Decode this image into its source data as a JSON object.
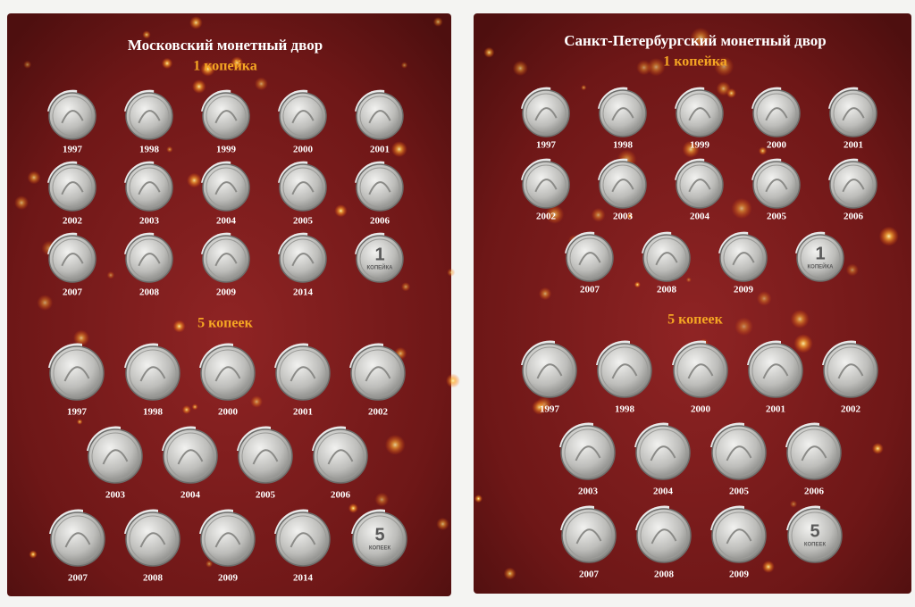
{
  "pages": [
    {
      "title": "Московский монетный двор",
      "sections": [
        {
          "label": "1 копейка",
          "coin_face": {
            "numeral": "1",
            "word": "КОПЕЙКА"
          },
          "rows": [
            [
              "1997",
              "1998",
              "1999",
              "2000",
              "2001"
            ],
            [
              "2002",
              "2003",
              "2004",
              "2005",
              "2006"
            ],
            [
              "2007",
              "2008",
              "2009",
              "2014"
            ]
          ]
        },
        {
          "label": "5 копеек",
          "coin_face": {
            "numeral": "5",
            "word": "КОПЕЕК"
          },
          "rows": [
            [
              "1997",
              "1998",
              "2000",
              "2001",
              "2002"
            ],
            [
              "2003",
              "2004",
              "2005",
              "2006"
            ],
            [
              "2007",
              "2008",
              "2009",
              "2014"
            ]
          ]
        }
      ]
    },
    {
      "title": "Санкт-Петербургский монетный двор",
      "sections": [
        {
          "label": "1 копейка",
          "coin_face": {
            "numeral": "1",
            "word": "КОПЕЙКА"
          },
          "rows": [
            [
              "1997",
              "1998",
              "1999",
              "2000",
              "2001"
            ],
            [
              "2002",
              "2003",
              "2004",
              "2005",
              "2006"
            ],
            [
              "2007",
              "2008",
              "2009"
            ]
          ]
        },
        {
          "label": "5 копеек",
          "coin_face": {
            "numeral": "5",
            "word": "КОПЕЕК"
          },
          "rows": [
            [
              "1997",
              "1998",
              "2000",
              "2001",
              "2002"
            ],
            [
              "2003",
              "2004",
              "2005",
              "2006"
            ],
            [
              "2007",
              "2008",
              "2009"
            ]
          ]
        }
      ]
    }
  ]
}
